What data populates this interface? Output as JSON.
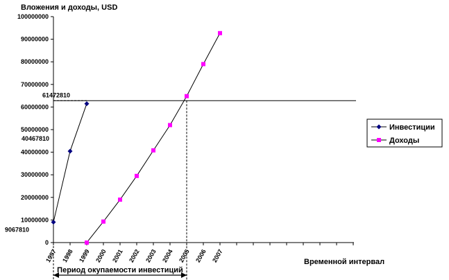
{
  "chart_data": {
    "type": "line",
    "ylabel": "Вложения и доходы, USD",
    "xlabel": "Временной интервал",
    "categories": [
      "1997",
      "1998",
      "1999",
      "2000",
      "2001",
      "2002",
      "2003",
      "2004",
      "2005",
      "2006",
      "2007"
    ],
    "ylim": [
      0,
      100000000
    ],
    "yticks": [
      "0",
      "10000000",
      "20000000",
      "30000000",
      "40000000",
      "50000000",
      "60000000",
      "70000000",
      "80000000",
      "90000000",
      "100000000"
    ],
    "grid": false,
    "legend_position": "right",
    "series": [
      {
        "name": "Инвестиции",
        "color": "#000080",
        "marker": "diamond",
        "points": [
          [
            1997,
            9067810
          ],
          [
            1998,
            40467810
          ],
          [
            1999,
            61472810
          ]
        ]
      },
      {
        "name": "Доходы",
        "color": "#ff00ff",
        "marker": "square",
        "points": [
          [
            1999,
            0
          ],
          [
            2000,
            9300000
          ],
          [
            2001,
            19000000
          ],
          [
            2002,
            29500000
          ],
          [
            2003,
            40800000
          ],
          [
            2004,
            52000000
          ],
          [
            2005,
            64800000
          ],
          [
            2006,
            79000000
          ],
          [
            2007,
            92700000
          ]
        ]
      }
    ],
    "annotations": {
      "point_labels": [
        "9067810",
        "40467810",
        "61472810"
      ],
      "reference_y": 62800000,
      "breakeven_x": 2005,
      "payback_label": "Период окупаемости инвестиций"
    }
  }
}
